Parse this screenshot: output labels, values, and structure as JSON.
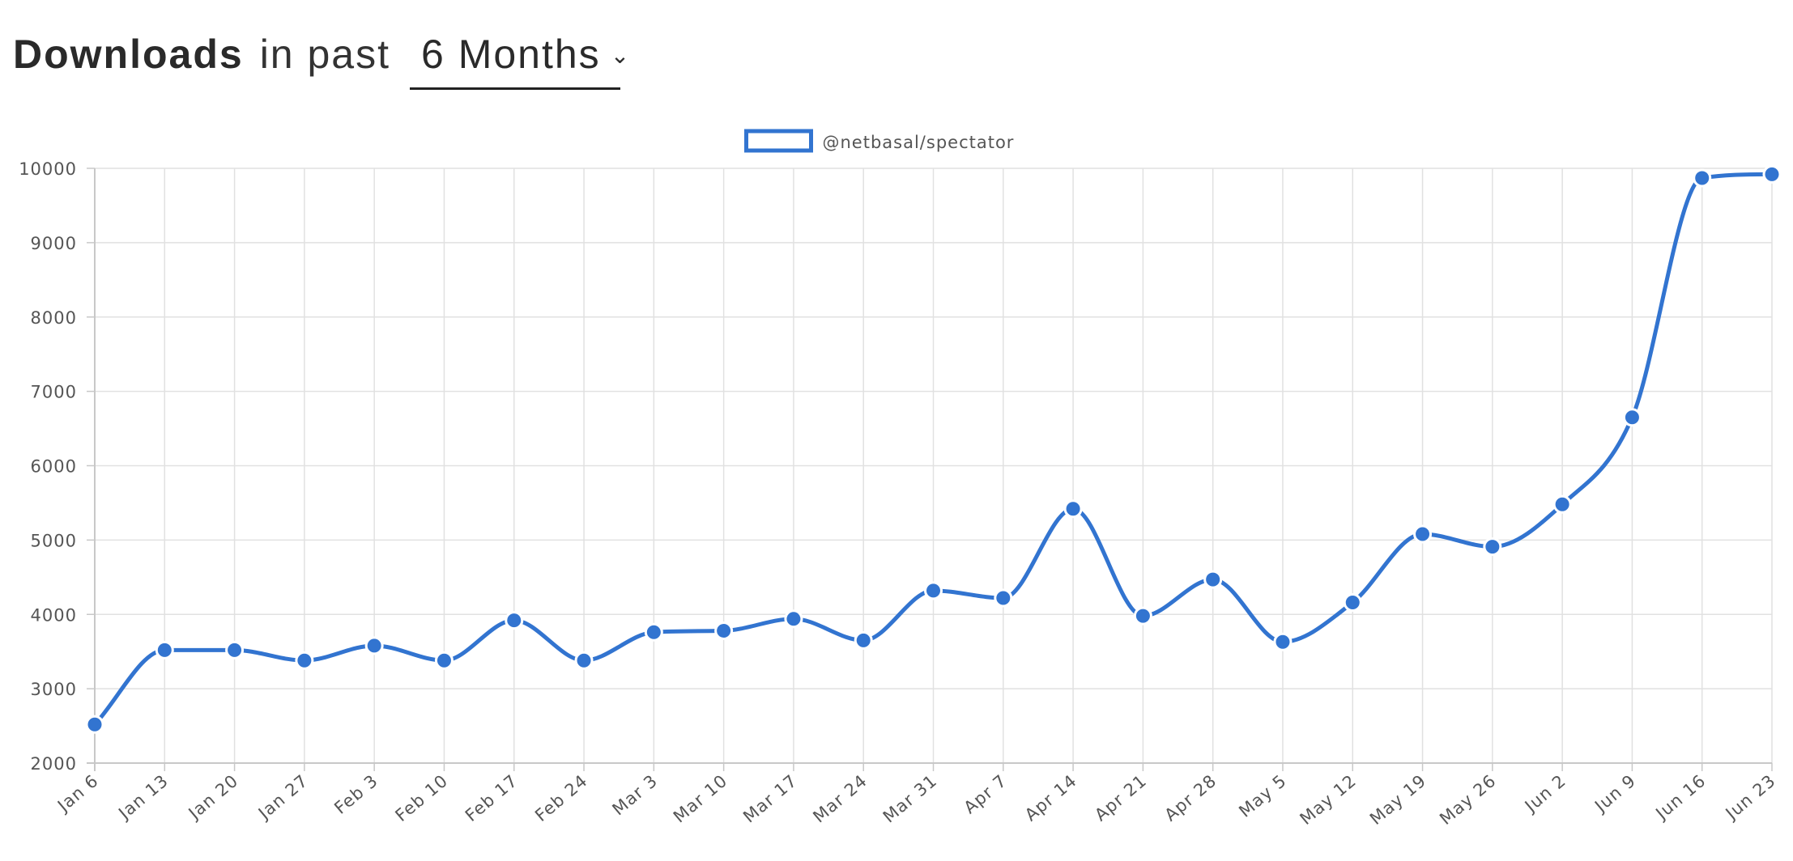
{
  "header": {
    "title_bold": "Downloads",
    "title_light": "in past",
    "range_selected": "6 Months"
  },
  "colors": {
    "series": "#3274d0",
    "grid": "#e1e1e1",
    "axis": "#c8c8c8"
  },
  "chart_data": {
    "type": "line",
    "curve": "smooth",
    "legend_position": "top-center",
    "grid": true,
    "ylim": [
      2000,
      10000
    ],
    "yticks": [
      2000,
      3000,
      4000,
      5000,
      6000,
      7000,
      8000,
      9000,
      10000
    ],
    "categories": [
      "Jan 6",
      "Jan 13",
      "Jan 20",
      "Jan 27",
      "Feb 3",
      "Feb 10",
      "Feb 17",
      "Feb 24",
      "Mar 3",
      "Mar 10",
      "Mar 17",
      "Mar 24",
      "Mar 31",
      "Apr 7",
      "Apr 14",
      "Apr 21",
      "Apr 28",
      "May 5",
      "May 12",
      "May 19",
      "May 26",
      "Jun 2",
      "Jun 9",
      "Jun 16",
      "Jun 23"
    ],
    "series": [
      {
        "name": "@netbasal/spectator",
        "values": [
          2520,
          3520,
          3520,
          3380,
          3580,
          3380,
          3920,
          3380,
          3760,
          3780,
          3940,
          3650,
          4320,
          4220,
          5420,
          3980,
          4470,
          3630,
          4160,
          5080,
          4910,
          5480,
          6650,
          9870,
          9920
        ]
      }
    ]
  }
}
